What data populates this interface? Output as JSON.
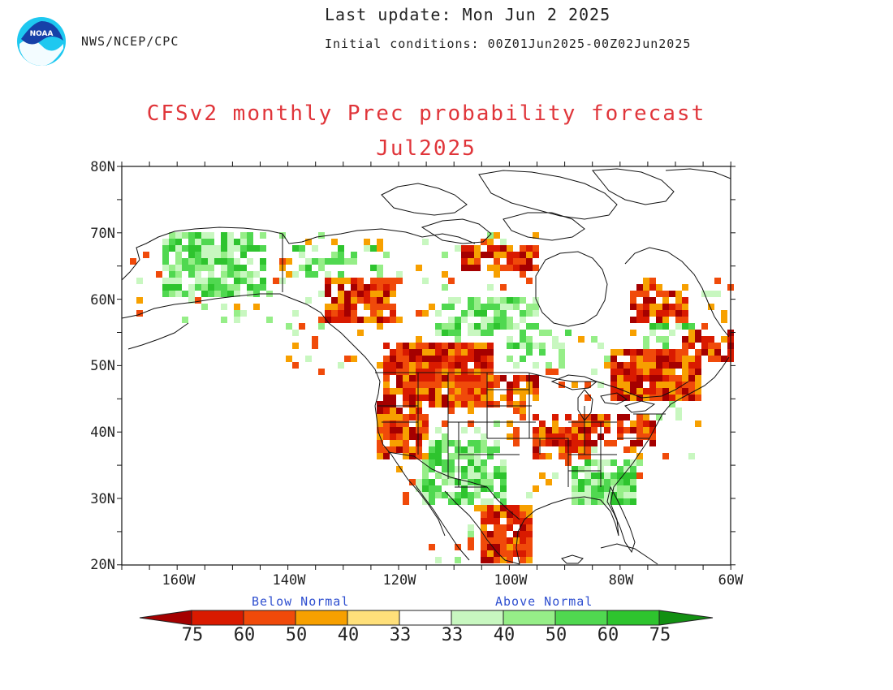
{
  "header": {
    "agency": "NWS/NCEP/CPC",
    "last_update": "Last update: Mon Jun  2 2025",
    "initial_conditions": "Initial conditions: 00Z01Jun2025-00Z02Jun2025",
    "logo_text": "NOAA"
  },
  "title": {
    "line1": "CFSv2 monthly Prec probability forecast",
    "line2": "Jul2025"
  },
  "axes": {
    "lat_labels": [
      "80N",
      "70N",
      "60N",
      "50N",
      "40N",
      "30N",
      "20N"
    ],
    "lon_labels": [
      "160W",
      "140W",
      "120W",
      "100W",
      "80W",
      "60W"
    ],
    "lat_range": [
      20,
      80
    ],
    "lon_range": [
      -170,
      -60
    ]
  },
  "legend": {
    "below_label": "Below Normal",
    "above_label": "Above Normal",
    "tick_labels": [
      "75",
      "60",
      "50",
      "40",
      "33",
      "33",
      "40",
      "50",
      "60",
      "75"
    ],
    "below_colors": [
      "#a50000",
      "#d91a00",
      "#f04a0a",
      "#f7a000",
      "#ffe07a"
    ],
    "neutral_color": "#ffffff",
    "above_colors": [
      "#c8f7c0",
      "#96ee88",
      "#50d850",
      "#2ec42e",
      "#129012"
    ]
  }
}
